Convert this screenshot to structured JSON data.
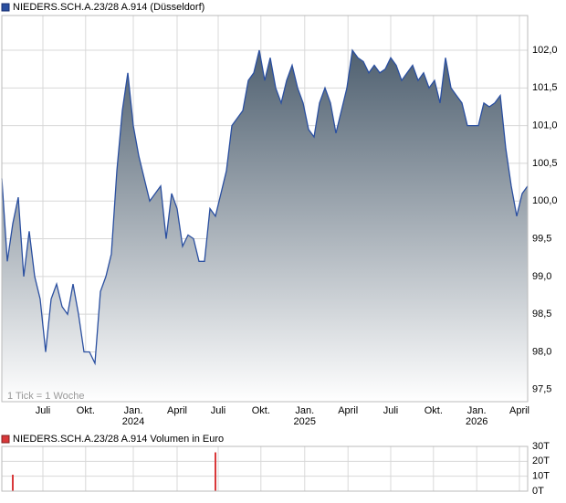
{
  "chart_data": [
    {
      "type": "area",
      "title": "NIEDERS.SCH.A.23/28 A.914 (Düsseldorf)",
      "note": "1 Tick = 1 Woche",
      "series": [
        {
          "name": "NIEDERS.SCH.A.23/28 A.914 (Düsseldorf)",
          "color": "#2a4fa0",
          "values": [
            100.3,
            99.2,
            99.7,
            100.05,
            99.0,
            99.6,
            99.0,
            98.7,
            98.0,
            98.7,
            98.9,
            98.6,
            98.5,
            98.9,
            98.5,
            98.0,
            98.0,
            97.85,
            98.8,
            99.0,
            99.3,
            100.4,
            101.2,
            101.7,
            101.0,
            100.6,
            100.3,
            100.0,
            100.1,
            100.2,
            99.5,
            100.1,
            99.9,
            99.4,
            99.55,
            99.5,
            99.2,
            99.2,
            99.9,
            99.8,
            100.1,
            100.4,
            101.0,
            101.1,
            101.2,
            101.6,
            101.7,
            102.0,
            101.6,
            101.9,
            101.5,
            101.3,
            101.6,
            101.8,
            101.5,
            101.3,
            100.95,
            100.85,
            101.3,
            101.5,
            101.3,
            100.9,
            101.2,
            101.5,
            102.0,
            101.9,
            101.85,
            101.7,
            101.8,
            101.7,
            101.75,
            101.9,
            101.8,
            101.6,
            101.7,
            101.8,
            101.6,
            101.7,
            101.5,
            101.6,
            101.3,
            101.9,
            101.5,
            101.4,
            101.3,
            101.0,
            101.0,
            101.0,
            101.3,
            101.25,
            101.3,
            101.4,
            100.7,
            100.2,
            99.8,
            100.1,
            100.2
          ]
        }
      ],
      "xlim": [
        0,
        96
      ],
      "xticks": [
        {
          "value": 7.5,
          "label": "Juli"
        },
        {
          "value": 15.3,
          "label": "Okt."
        },
        {
          "value": 24,
          "label": "Jan."
        },
        {
          "value": 32,
          "label": "April"
        },
        {
          "value": 39.5,
          "label": "Juli"
        },
        {
          "value": 47.3,
          "label": "Okt."
        },
        {
          "value": 55.3,
          "label": "Jan."
        },
        {
          "value": 63.2,
          "label": "April"
        },
        {
          "value": 71,
          "label": "Juli"
        },
        {
          "value": 78.8,
          "label": "Okt."
        },
        {
          "value": 86.7,
          "label": "Jan."
        },
        {
          "value": 94.5,
          "label": "April"
        }
      ],
      "year_labels": [
        {
          "value": 24,
          "label": "2024"
        },
        {
          "value": 55.3,
          "label": "2025"
        },
        {
          "value": 86.7,
          "label": "2026"
        }
      ],
      "ylim": [
        97.34,
        102.46
      ],
      "yticks": [
        {
          "value": 97.5,
          "label": "97,5"
        },
        {
          "value": 98.0,
          "label": "98,0"
        },
        {
          "value": 98.5,
          "label": "98,5"
        },
        {
          "value": 99.0,
          "label": "99,0"
        },
        {
          "value": 99.5,
          "label": "99,5"
        },
        {
          "value": 100.0,
          "label": "100,0"
        },
        {
          "value": 100.5,
          "label": "100,5"
        },
        {
          "value": 101.0,
          "label": "101,0"
        },
        {
          "value": 101.5,
          "label": "101,5"
        },
        {
          "value": 102.0,
          "label": "102,0"
        }
      ],
      "grid": true
    },
    {
      "type": "bar",
      "title": "NIEDERS.SCH.A.23/28 A.914 Volumen in Euro",
      "color": "#d9383a",
      "bars": [
        {
          "index": 2,
          "value": 11
        },
        {
          "index": 39,
          "value": 26
        }
      ],
      "xlim": [
        0,
        96
      ],
      "ylim": [
        0,
        30
      ],
      "yticks": [
        {
          "value": 0,
          "label": "0T"
        },
        {
          "value": 10,
          "label": "10T"
        },
        {
          "value": 20,
          "label": "20T"
        },
        {
          "value": 30,
          "label": "30T"
        }
      ],
      "grid": true
    }
  ]
}
